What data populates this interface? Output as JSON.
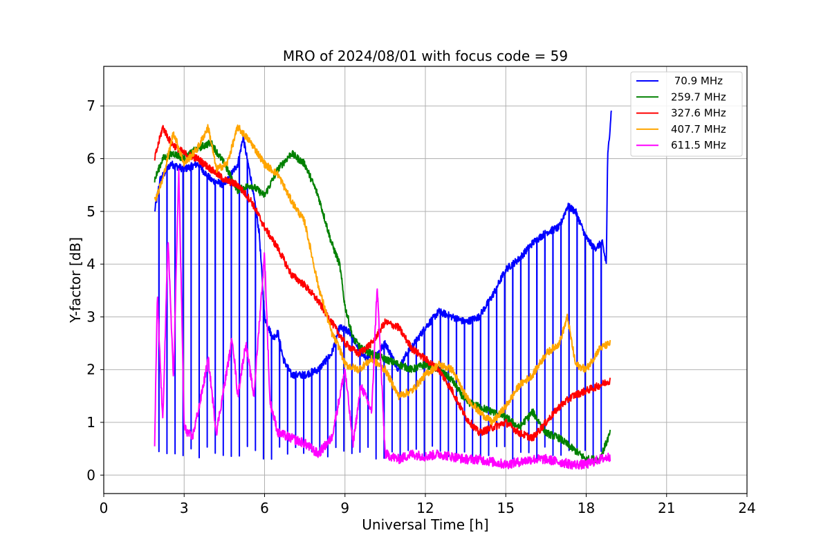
{
  "chart_data": {
    "type": "line",
    "title": "MRO of 2024/08/01 with focus code = 59",
    "xlabel": "Universal Time [h]",
    "ylabel": "Y-factor [dB]",
    "xlim": [
      0,
      24
    ],
    "ylim": [
      -0.35,
      7.75
    ],
    "xticks": [
      0,
      3,
      6,
      9,
      12,
      15,
      18,
      21,
      24
    ],
    "yticks": [
      0,
      1,
      2,
      3,
      4,
      5,
      6,
      7
    ],
    "grid": true,
    "legend_position": "top-right",
    "series": [
      {
        "name": " 70.9 MHz",
        "color": "#0000ff",
        "dip_baseline": 0.3,
        "dip_interval_h": 0.3,
        "points": [
          [
            1.9,
            5.0
          ],
          [
            2.1,
            5.6
          ],
          [
            2.5,
            5.9
          ],
          [
            3.0,
            5.8
          ],
          [
            3.5,
            5.9
          ],
          [
            4.0,
            5.6
          ],
          [
            4.5,
            5.5
          ],
          [
            5.0,
            5.9
          ],
          [
            5.2,
            6.4
          ],
          [
            5.5,
            5.6
          ],
          [
            5.8,
            4.6
          ],
          [
            6.0,
            3.0
          ],
          [
            6.3,
            2.6
          ],
          [
            6.5,
            2.7
          ],
          [
            6.7,
            2.2
          ],
          [
            7.0,
            1.9
          ],
          [
            7.5,
            1.9
          ],
          [
            8.0,
            2.0
          ],
          [
            8.5,
            2.3
          ],
          [
            8.8,
            2.8
          ],
          [
            9.2,
            2.7
          ],
          [
            9.5,
            2.4
          ],
          [
            9.8,
            2.2
          ],
          [
            10.2,
            2.3
          ],
          [
            10.5,
            2.5
          ],
          [
            11.0,
            2.0
          ],
          [
            11.3,
            2.3
          ],
          [
            11.6,
            2.5
          ],
          [
            12.0,
            2.8
          ],
          [
            12.5,
            3.1
          ],
          [
            13.0,
            3.0
          ],
          [
            13.5,
            2.9
          ],
          [
            14.0,
            3.0
          ],
          [
            14.5,
            3.4
          ],
          [
            15.0,
            3.9
          ],
          [
            15.5,
            4.1
          ],
          [
            16.0,
            4.4
          ],
          [
            16.5,
            4.6
          ],
          [
            17.0,
            4.7
          ],
          [
            17.3,
            5.1
          ],
          [
            17.6,
            5.0
          ],
          [
            18.0,
            4.5
          ],
          [
            18.3,
            4.3
          ],
          [
            18.6,
            4.4
          ],
          [
            18.75,
            4.0
          ],
          [
            18.8,
            6.0
          ],
          [
            18.95,
            7.0
          ]
        ]
      },
      {
        "name": "259.7 MHz",
        "color": "#008000",
        "points": [
          [
            1.9,
            5.6
          ],
          [
            2.2,
            6.0
          ],
          [
            2.6,
            6.1
          ],
          [
            3.0,
            6.0
          ],
          [
            3.5,
            6.2
          ],
          [
            4.0,
            6.3
          ],
          [
            4.5,
            5.9
          ],
          [
            5.0,
            5.4
          ],
          [
            5.5,
            5.5
          ],
          [
            6.0,
            5.3
          ],
          [
            6.5,
            5.8
          ],
          [
            7.0,
            6.1
          ],
          [
            7.5,
            5.9
          ],
          [
            8.0,
            5.3
          ],
          [
            8.5,
            4.4
          ],
          [
            8.8,
            4.0
          ],
          [
            9.0,
            3.2
          ],
          [
            9.3,
            2.6
          ],
          [
            9.6,
            2.4
          ],
          [
            10.0,
            2.3
          ],
          [
            10.5,
            2.2
          ],
          [
            11.0,
            2.1
          ],
          [
            11.5,
            2.0
          ],
          [
            12.0,
            2.1
          ],
          [
            12.5,
            2.0
          ],
          [
            13.0,
            1.8
          ],
          [
            13.5,
            1.4
          ],
          [
            14.0,
            1.3
          ],
          [
            14.5,
            1.2
          ],
          [
            15.0,
            1.1
          ],
          [
            15.5,
            0.9
          ],
          [
            16.0,
            1.2
          ],
          [
            16.5,
            0.8
          ],
          [
            17.0,
            0.7
          ],
          [
            17.5,
            0.5
          ],
          [
            18.0,
            0.3
          ],
          [
            18.5,
            0.3
          ],
          [
            18.9,
            0.8
          ]
        ]
      },
      {
        "name": "327.6 MHz",
        "color": "#ff0000",
        "points": [
          [
            1.9,
            6.0
          ],
          [
            2.2,
            6.6
          ],
          [
            2.5,
            6.3
          ],
          [
            3.0,
            6.1
          ],
          [
            3.5,
            6.0
          ],
          [
            4.0,
            5.8
          ],
          [
            4.5,
            5.6
          ],
          [
            5.0,
            5.5
          ],
          [
            5.5,
            5.2
          ],
          [
            6.0,
            4.7
          ],
          [
            6.5,
            4.3
          ],
          [
            7.0,
            3.8
          ],
          [
            7.5,
            3.6
          ],
          [
            8.0,
            3.3
          ],
          [
            8.5,
            2.9
          ],
          [
            9.0,
            2.5
          ],
          [
            9.5,
            2.3
          ],
          [
            10.0,
            2.5
          ],
          [
            10.5,
            2.9
          ],
          [
            11.0,
            2.8
          ],
          [
            11.5,
            2.4
          ],
          [
            12.0,
            2.2
          ],
          [
            12.5,
            2.0
          ],
          [
            13.0,
            1.6
          ],
          [
            13.5,
            1.1
          ],
          [
            14.0,
            0.8
          ],
          [
            14.5,
            0.9
          ],
          [
            15.0,
            1.0
          ],
          [
            15.5,
            0.8
          ],
          [
            16.0,
            0.7
          ],
          [
            16.5,
            1.0
          ],
          [
            17.0,
            1.3
          ],
          [
            17.5,
            1.5
          ],
          [
            18.0,
            1.6
          ],
          [
            18.5,
            1.7
          ],
          [
            18.9,
            1.8
          ]
        ]
      },
      {
        "name": "407.7 MHz",
        "color": "#ffa500",
        "points": [
          [
            1.9,
            5.2
          ],
          [
            2.2,
            5.6
          ],
          [
            2.6,
            6.5
          ],
          [
            3.0,
            5.9
          ],
          [
            3.5,
            6.2
          ],
          [
            3.9,
            6.6
          ],
          [
            4.2,
            5.8
          ],
          [
            4.6,
            5.9
          ],
          [
            5.0,
            6.6
          ],
          [
            5.5,
            6.3
          ],
          [
            6.0,
            5.9
          ],
          [
            6.5,
            5.7
          ],
          [
            7.0,
            5.2
          ],
          [
            7.5,
            4.8
          ],
          [
            8.0,
            3.6
          ],
          [
            8.5,
            2.7
          ],
          [
            8.8,
            2.4
          ],
          [
            9.0,
            2.1
          ],
          [
            9.5,
            2.0
          ],
          [
            10.0,
            2.2
          ],
          [
            10.5,
            2.0
          ],
          [
            11.0,
            1.5
          ],
          [
            11.5,
            1.6
          ],
          [
            12.0,
            1.9
          ],
          [
            12.5,
            2.1
          ],
          [
            13.0,
            2.0
          ],
          [
            13.5,
            1.5
          ],
          [
            14.0,
            1.2
          ],
          [
            14.5,
            1.0
          ],
          [
            15.0,
            1.3
          ],
          [
            15.5,
            1.7
          ],
          [
            16.0,
            1.9
          ],
          [
            16.5,
            2.3
          ],
          [
            17.0,
            2.5
          ],
          [
            17.3,
            3.0
          ],
          [
            17.6,
            2.1
          ],
          [
            18.0,
            2.0
          ],
          [
            18.5,
            2.4
          ],
          [
            18.9,
            2.5
          ]
        ]
      },
      {
        "name": "611.5 MHz",
        "color": "#ff00ff",
        "points": [
          [
            1.9,
            0.6
          ],
          [
            2.0,
            3.4
          ],
          [
            2.2,
            1.0
          ],
          [
            2.4,
            4.5
          ],
          [
            2.6,
            1.8
          ],
          [
            2.8,
            5.8
          ],
          [
            3.0,
            0.9
          ],
          [
            3.3,
            0.7
          ],
          [
            3.6,
            1.4
          ],
          [
            3.9,
            2.2
          ],
          [
            4.2,
            0.8
          ],
          [
            4.5,
            1.7
          ],
          [
            4.8,
            2.6
          ],
          [
            5.0,
            1.5
          ],
          [
            5.3,
            2.5
          ],
          [
            5.6,
            1.5
          ],
          [
            6.0,
            4.2
          ],
          [
            6.2,
            1.4
          ],
          [
            6.5,
            0.8
          ],
          [
            7.0,
            0.7
          ],
          [
            7.5,
            0.6
          ],
          [
            8.0,
            0.4
          ],
          [
            8.5,
            0.7
          ],
          [
            9.0,
            2.0
          ],
          [
            9.3,
            0.6
          ],
          [
            9.6,
            1.7
          ],
          [
            10.0,
            1.2
          ],
          [
            10.2,
            3.6
          ],
          [
            10.5,
            0.4
          ],
          [
            11.0,
            0.3
          ],
          [
            11.5,
            0.4
          ],
          [
            12.0,
            0.35
          ],
          [
            12.5,
            0.4
          ],
          [
            13.0,
            0.35
          ],
          [
            13.5,
            0.3
          ],
          [
            14.0,
            0.3
          ],
          [
            14.5,
            0.25
          ],
          [
            15.0,
            0.2
          ],
          [
            15.5,
            0.25
          ],
          [
            16.0,
            0.3
          ],
          [
            16.5,
            0.3
          ],
          [
            17.0,
            0.25
          ],
          [
            17.5,
            0.2
          ],
          [
            18.0,
            0.2
          ],
          [
            18.5,
            0.3
          ],
          [
            18.9,
            0.35
          ]
        ]
      }
    ]
  }
}
